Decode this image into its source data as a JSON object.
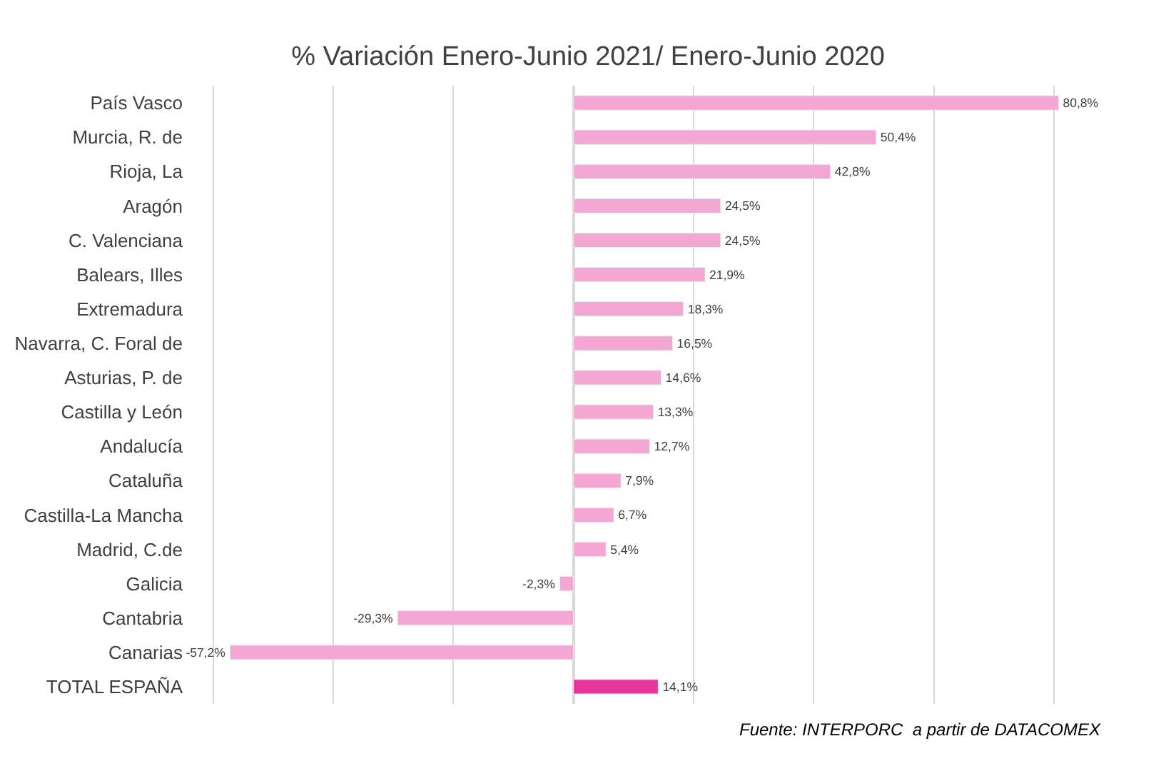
{
  "chart_data": {
    "type": "bar",
    "orientation": "horizontal",
    "title": "% Variación Enero-Junio 2021/ Enero-Junio 2020",
    "categories": [
      "País Vasco",
      "Murcia, R. de",
      "Rioja, La",
      "Aragón",
      "C. Valenciana",
      "Balears, Illes",
      "Extremadura",
      "Navarra, C. Foral de",
      "Asturias, P. de",
      "Castilla y León",
      "Andalucía",
      "Cataluña",
      "Castilla-La Mancha",
      "Madrid, C.de",
      "Galicia",
      "Cantabria",
      "Canarias",
      "TOTAL ESPAÑA"
    ],
    "values": [
      80.8,
      50.4,
      42.8,
      24.5,
      24.5,
      21.9,
      18.3,
      16.5,
      14.6,
      13.3,
      12.7,
      7.9,
      6.7,
      5.4,
      -2.3,
      -29.3,
      -57.2,
      14.1
    ],
    "value_labels": [
      "80,8%",
      "50,4%",
      "42,8%",
      "24,5%",
      "24,5%",
      "21,9%",
      "18,3%",
      "16,5%",
      "14,6%",
      "13,3%",
      "12,7%",
      "7,9%",
      "6,7%",
      "5,4%",
      "-2,3%",
      "-29,3%",
      "-57,2%",
      "14,1%"
    ],
    "colors": [
      "#f4a7d3",
      "#f4a7d3",
      "#f4a7d3",
      "#f4a7d3",
      "#f4a7d3",
      "#f4a7d3",
      "#f4a7d3",
      "#f4a7d3",
      "#f4a7d3",
      "#f4a7d3",
      "#f4a7d3",
      "#f4a7d3",
      "#f4a7d3",
      "#f4a7d3",
      "#f4a7d3",
      "#f4a7d3",
      "#f4a7d3",
      "#e8359b"
    ],
    "grid": "x",
    "legend": false,
    "tick_labels": "y",
    "annotations": [
      "Fuente: INTERPORC  a partir de DATACOMEX"
    ]
  }
}
